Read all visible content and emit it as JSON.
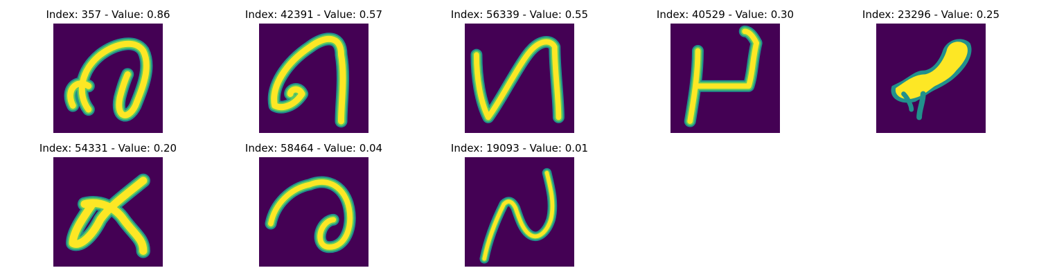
{
  "colors": {
    "background": "#440154",
    "stroke_core": "#fde725",
    "stroke_mid": "#5ec962",
    "stroke_edge": "#21918c",
    "stroke_outer": "#3b528b"
  },
  "panels": [
    {
      "title": "Index: 357 - Value: 0.86",
      "index": "357",
      "value": "0.86",
      "glyph": "a"
    },
    {
      "title": "Index: 42391 - Value: 0.57",
      "index": "42391",
      "value": "0.57",
      "glyph": "a"
    },
    {
      "title": "Index: 56339 - Value: 0.55",
      "index": "56339",
      "value": "0.55",
      "glyph": "N"
    },
    {
      "title": "Index: 40529 - Value: 0.30",
      "index": "40529",
      "value": "0.30",
      "glyph": "P"
    },
    {
      "title": "Index: 23296 - Value: 0.25",
      "index": "23296",
      "value": "0.25",
      "glyph": "blob"
    },
    {
      "title": "Index: 54331 - Value: 0.20",
      "index": "54331",
      "value": "0.20",
      "glyph": "a"
    },
    {
      "title": "Index: 58464 - Value: 0.04",
      "index": "58464",
      "value": "0.04",
      "glyph": "a"
    },
    {
      "title": "Index: 19093 - Value: 0.01",
      "index": "19093",
      "value": "0.01",
      "glyph": "N"
    }
  ]
}
